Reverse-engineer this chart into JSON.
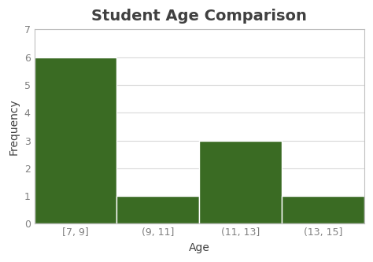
{
  "title": "Student Age Comparison",
  "categories": [
    "[7, 9]",
    "(9, 11]",
    "(11, 13]",
    "(13, 15]"
  ],
  "values": [
    6,
    1,
    3,
    1
  ],
  "bar_color": "#3a6b23",
  "xlabel": "Age",
  "ylabel": "Frequency",
  "ylim": [
    0,
    7
  ],
  "yticks": [
    0,
    1,
    2,
    3,
    4,
    5,
    6,
    7
  ],
  "background_color": "#ffffff",
  "plot_bg_color": "#ffffff",
  "title_fontsize": 14,
  "label_fontsize": 10,
  "tick_fontsize": 9,
  "bar_edge_color": "#ffffff",
  "bar_linewidth": 1.0,
  "grid_color": "#d9d9d9",
  "spine_color": "#bfbfbf",
  "title_color": "#404040",
  "tick_color": "#808080",
  "label_color": "#404040"
}
